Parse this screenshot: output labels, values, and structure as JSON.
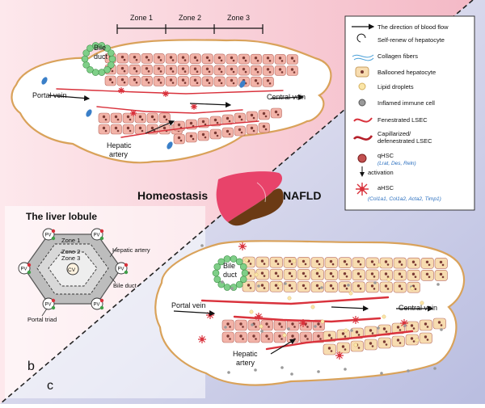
{
  "zones": [
    "Zone 1",
    "Zone 2",
    "Zone 3"
  ],
  "top": {
    "bile_duct_line1": "Bile",
    "bile_duct_line2": "duct",
    "portal_vein": "Portal vein",
    "central_vein": "Central vein",
    "hepatic_artery_line1": "Hepatic",
    "hepatic_artery_line2": "artery"
  },
  "bottom": {
    "bile_duct_line1": "Bile",
    "bile_duct_line2": "duct",
    "portal_vein": "Portal vein",
    "central_vein": "Central vein",
    "hepatic_artery_line1": "Hepatic",
    "hepatic_artery_line2": "artery"
  },
  "states": {
    "homeostasis": "Homeostasis",
    "nafld": "NAFLD"
  },
  "lobule": {
    "title": "The liver lobule",
    "zone1": "Zone 1",
    "zone2": "Zone 2",
    "zone3": "Zone 3",
    "cv": "CV",
    "pv": "PV",
    "hepatic_artery": "Hepatic artery",
    "bile_duct": "Bile duct",
    "portal_triad": "Portal triad"
  },
  "panels": {
    "b": "b",
    "c": "c"
  },
  "legend": {
    "blood_flow": "The direction of blood flow",
    "self_renew": "Self-renew of hepatocyte",
    "collagen": "Collagen fibers",
    "ballooned": "Ballooned hepatocyte",
    "lipid": "Lipid droplets",
    "immune": "Inflamed immune cell",
    "fenestrated": "Fenestrated LSEC",
    "capillarized_line1": "Capillarized/",
    "capillarized_line2": "defenestrated LSEC",
    "qhsc": "qHSC",
    "qhsc_markers": "(Lrat, Des, Reln)",
    "activation": "activation",
    "ahsc": "aHSC",
    "ahsc_markers": "(Col1a1, Col1a2, Acta2, Timp1)"
  },
  "colors": {
    "hepatocyte": "#f2b3a8",
    "nucleus": "#7a3a34",
    "bile_cell": "#7fcf88",
    "lsec": "#d9323c",
    "portal_vessel": "#d9a25a",
    "kupffer": "#3a7fc8",
    "ballooned": "#f7dcb0",
    "liver_healthy": "#e8436a",
    "liver_nafld": "#6b3a14"
  }
}
